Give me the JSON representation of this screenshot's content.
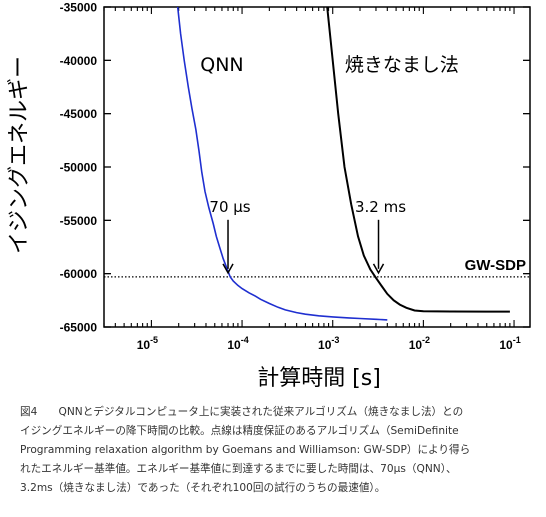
{
  "chart_data": {
    "type": "line",
    "xscale": "log",
    "xlim": [
      3e-06,
      0.15
    ],
    "ylim": [
      -65000,
      -35000
    ],
    "xticks": [
      1e-05,
      0.0001,
      0.001,
      0.01,
      0.1
    ],
    "xtick_labels": [
      {
        "base": "10",
        "exp": "-5"
      },
      {
        "base": "10",
        "exp": "-4"
      },
      {
        "base": "10",
        "exp": "-3"
      },
      {
        "base": "10",
        "exp": "-2"
      },
      {
        "base": "10",
        "exp": "-1"
      }
    ],
    "yticks": [
      -35000,
      -40000,
      -45000,
      -50000,
      -55000,
      -60000,
      -65000
    ],
    "ytick_labels": [
      "-35000",
      "-40000",
      "-45000",
      "-50000",
      "-55000",
      "-60000",
      "-65000"
    ],
    "xlabel": "計算時間 [s]",
    "ylabel": "イジングエネルギー",
    "grid": false,
    "series": [
      {
        "name": "QNN",
        "color": "#1f2fd0",
        "points": [
          [
            1.95e-05,
            -35000
          ],
          [
            2.1e-05,
            -37500
          ],
          [
            2.3e-05,
            -40000
          ],
          [
            2.55e-05,
            -42500
          ],
          [
            2.8e-05,
            -44500
          ],
          [
            3.1e-05,
            -46500
          ],
          [
            3.35e-05,
            -48500
          ],
          [
            3.6e-05,
            -50500
          ],
          [
            3.9e-05,
            -52300
          ],
          [
            4.3e-05,
            -53800
          ],
          [
            4.8e-05,
            -55300
          ],
          [
            5.2e-05,
            -56500
          ],
          [
            5.7e-05,
            -57600
          ],
          [
            6.2e-05,
            -58600
          ],
          [
            6.8e-05,
            -59500
          ],
          [
            7.4e-05,
            -60300
          ],
          [
            8e-05,
            -60700
          ],
          [
            9e-05,
            -61100
          ],
          [
            0.0001,
            -61400
          ],
          [
            0.00012,
            -61800
          ],
          [
            0.00014,
            -62100
          ],
          [
            0.00016,
            -62400
          ],
          [
            0.0002,
            -62800
          ],
          [
            0.00025,
            -63150
          ],
          [
            0.0003,
            -63400
          ],
          [
            0.0004,
            -63650
          ],
          [
            0.0005,
            -63800
          ],
          [
            0.0007,
            -63950
          ],
          [
            0.001,
            -64050
          ],
          [
            0.0015,
            -64150
          ],
          [
            0.002,
            -64200
          ],
          [
            0.003,
            -64280
          ],
          [
            0.004,
            -64330
          ]
        ]
      },
      {
        "name": "焼きなまし法",
        "color": "#000000",
        "points": [
          [
            0.00087,
            -35000
          ],
          [
            0.001,
            -40000
          ],
          [
            0.00115,
            -45000
          ],
          [
            0.00135,
            -50000
          ],
          [
            0.0016,
            -53500
          ],
          [
            0.0019,
            -56500
          ],
          [
            0.0022,
            -58300
          ],
          [
            0.0026,
            -59600
          ],
          [
            0.003,
            -60400
          ],
          [
            0.0035,
            -61200
          ],
          [
            0.004,
            -61900
          ],
          [
            0.0047,
            -62500
          ],
          [
            0.0055,
            -62900
          ],
          [
            0.0065,
            -63200
          ],
          [
            0.008,
            -63450
          ],
          [
            0.01,
            -63520
          ],
          [
            0.02,
            -63550
          ],
          [
            0.05,
            -63560
          ],
          [
            0.09,
            -63560
          ]
        ]
      }
    ],
    "series_labels": [
      {
        "text": "QNN",
        "x": 6e-05,
        "y": -41000
      },
      {
        "text": "焼きなまし法",
        "x": 0.0058,
        "y": -41000
      }
    ],
    "reference_line": {
      "label": "GW-SDP",
      "y": -60300,
      "style": "dotted"
    },
    "annotations": [
      {
        "text": "70 μs",
        "x": 7e-05,
        "y": -60300,
        "label_y": -54200
      },
      {
        "text": "3.2 ms",
        "x": 0.0032,
        "y": -60300,
        "label_y": -54200
      }
    ]
  },
  "caption": {
    "lines": [
      "図4　　QNNとデジタルコンピュータ上に実装された従来アルゴリズム（焼きなまし法）との",
      "イジングエネルギーの降下時間の比較。点線は精度保証のあるアルゴリズム（SemiDefinite",
      "Programming relaxation algorithm by Goemans and Williamson: GW-SDP）により得ら",
      "れたエネルギー基準値。エネルギー基準値に到達するまでに要した時間は、70μs（QNN）、",
      "3.2ms（焼きなまし法）であった（それぞれ100回の試行のうちの最速値）。"
    ]
  }
}
